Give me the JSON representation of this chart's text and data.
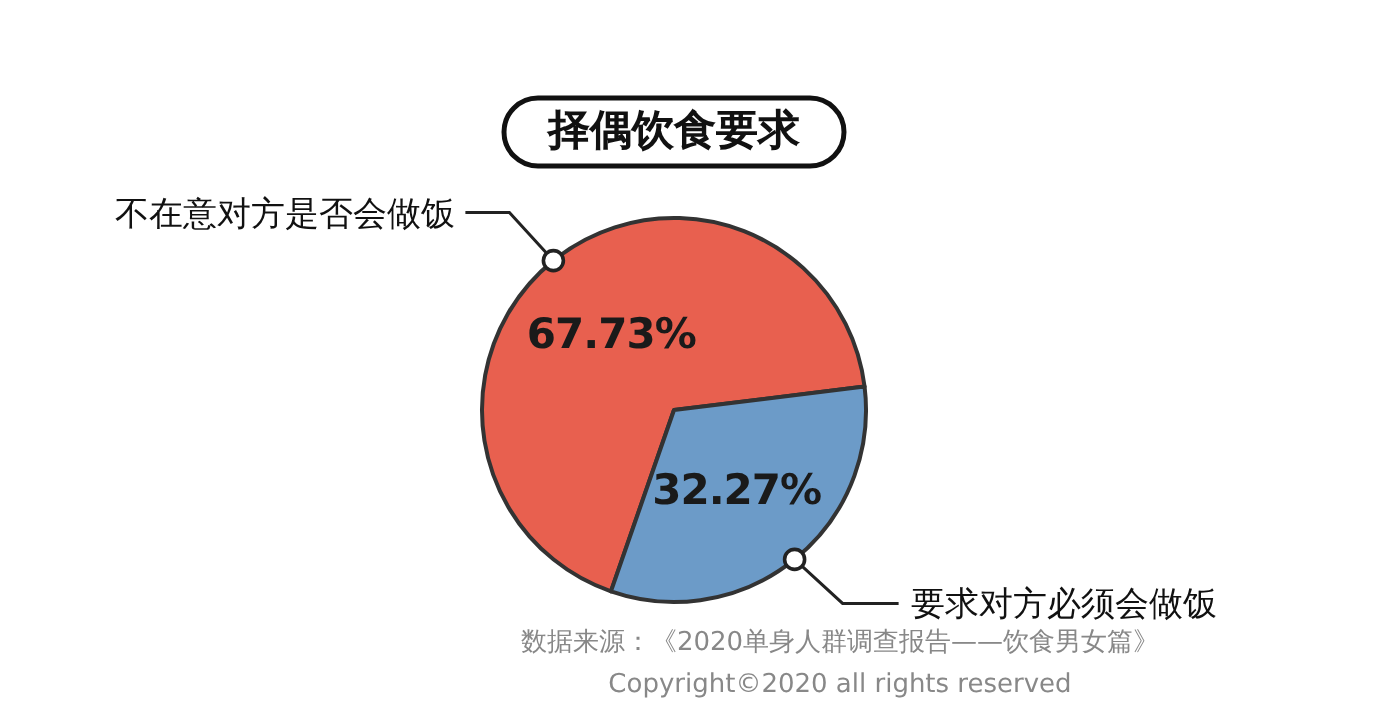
{
  "chart_data": {
    "type": "pie",
    "title": "择偶饮食要求",
    "categories": [
      "不在意对方是否会做饭",
      "要求对方必须会做饭"
    ],
    "values": [
      67.73,
      32.27
    ],
    "colors": [
      "#e8604f",
      "#6c9bc8"
    ],
    "value_labels": [
      "67.73%",
      "32.27%"
    ],
    "annotations": [
      "数据来源：《2020单身人群调查报告——饮食男女篇》",
      "Copyright©2020 all rights reserved"
    ]
  }
}
